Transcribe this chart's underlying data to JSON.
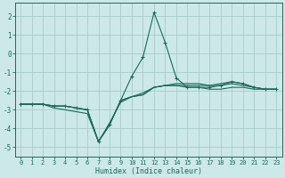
{
  "xlabel": "Humidex (Indice chaleur)",
  "ylabel": "",
  "background_color": "#cce8e8",
  "grid_color": "#aacccc",
  "line_color": "#1a6b5a",
  "xlim": [
    -0.5,
    23.5
  ],
  "ylim": [
    -5.5,
    2.7
  ],
  "yticks": [
    2,
    1,
    0,
    -1,
    -2,
    -3,
    -4,
    -5
  ],
  "xticks": [
    0,
    1,
    2,
    3,
    4,
    5,
    6,
    7,
    8,
    9,
    10,
    11,
    12,
    13,
    14,
    15,
    16,
    17,
    18,
    19,
    20,
    21,
    22,
    23
  ],
  "series": [
    {
      "x": [
        0,
        1,
        2,
        3,
        4,
        5,
        6,
        7,
        8,
        9,
        10,
        11,
        12,
        13,
        14,
        15,
        16,
        17,
        18,
        19,
        20,
        21,
        22,
        23
      ],
      "y": [
        -2.7,
        -2.7,
        -2.7,
        -2.8,
        -2.8,
        -2.9,
        -3.0,
        -4.7,
        -3.8,
        -2.5,
        -1.2,
        -0.2,
        2.2,
        0.6,
        -1.3,
        -1.8,
        -1.8,
        -1.8,
        -1.7,
        -1.5,
        -1.6,
        -1.8,
        -1.9,
        -1.9
      ],
      "marker": true
    },
    {
      "x": [
        0,
        1,
        2,
        3,
        4,
        5,
        6,
        7,
        8,
        9,
        10,
        11,
        12,
        13,
        14,
        15,
        16,
        17,
        18,
        19,
        20,
        21,
        22,
        23
      ],
      "y": [
        -2.7,
        -2.7,
        -2.7,
        -2.8,
        -2.8,
        -2.9,
        -3.0,
        -4.7,
        -3.8,
        -2.5,
        -2.3,
        -2.1,
        -1.8,
        -1.7,
        -1.7,
        -1.8,
        -1.8,
        -1.9,
        -1.9,
        -1.8,
        -1.8,
        -1.9,
        -1.9,
        -1.9
      ],
      "marker": false
    },
    {
      "x": [
        0,
        1,
        2,
        3,
        4,
        5,
        6,
        7,
        8,
        9,
        10,
        11,
        12,
        13,
        14,
        15,
        16,
        17,
        18,
        19,
        20,
        21,
        22,
        23
      ],
      "y": [
        -2.7,
        -2.7,
        -2.7,
        -2.8,
        -2.8,
        -2.9,
        -3.0,
        -4.7,
        -3.8,
        -2.5,
        -2.3,
        -2.2,
        -1.8,
        -1.7,
        -1.7,
        -1.7,
        -1.7,
        -1.7,
        -1.6,
        -1.5,
        -1.6,
        -1.8,
        -1.9,
        -1.9
      ],
      "marker": false
    },
    {
      "x": [
        0,
        1,
        2,
        3,
        4,
        5,
        6,
        7,
        8,
        9,
        10,
        11,
        12,
        13,
        14,
        15,
        16,
        17,
        18,
        19,
        20,
        21,
        22,
        23
      ],
      "y": [
        -2.7,
        -2.7,
        -2.7,
        -2.9,
        -3.0,
        -3.1,
        -3.2,
        -4.7,
        -3.7,
        -2.6,
        -2.3,
        -2.2,
        -1.8,
        -1.7,
        -1.6,
        -1.6,
        -1.6,
        -1.7,
        -1.7,
        -1.6,
        -1.7,
        -1.8,
        -1.9,
        -1.9
      ],
      "marker": false
    }
  ]
}
